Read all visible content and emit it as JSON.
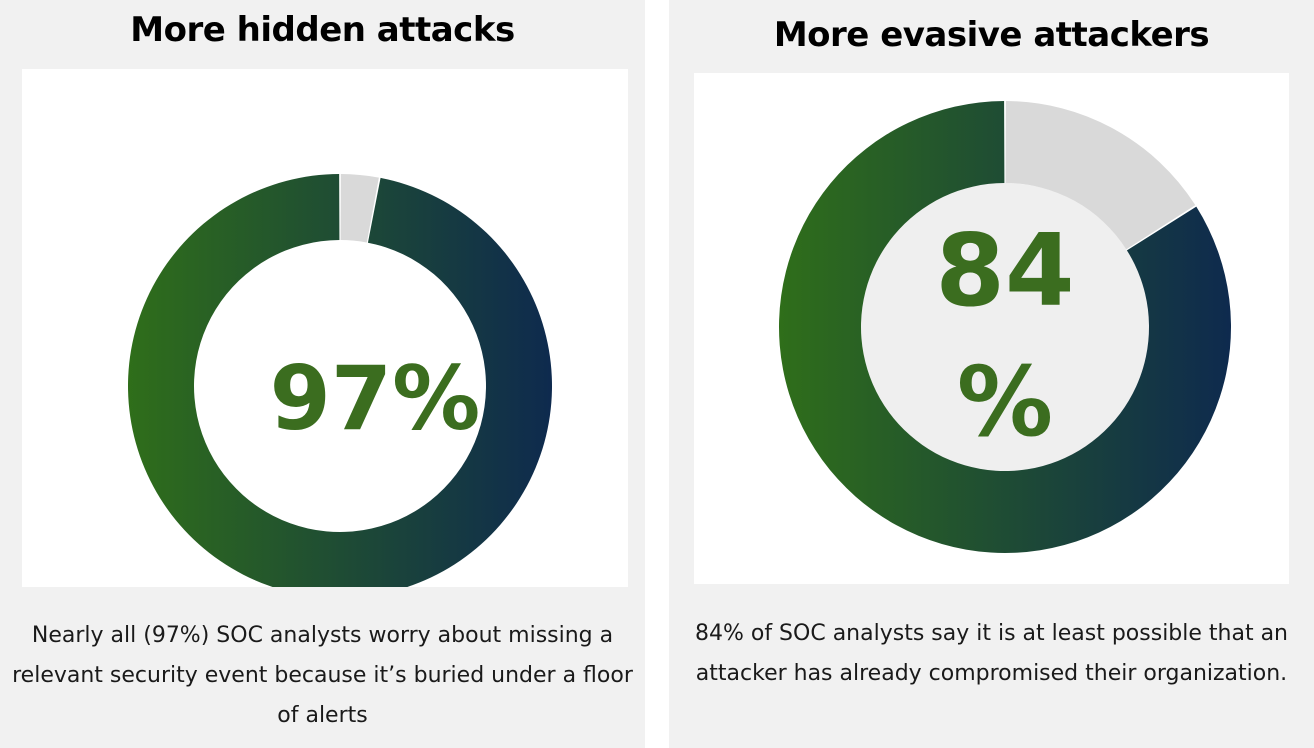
{
  "colors": {
    "ring_start": "#2f6e1a",
    "ring_end": "#0e2a4e",
    "remainder": "#d9d9d9",
    "value_text": "#3b6d1f",
    "inner_fill_right": "#efefef"
  },
  "chart_data": [
    {
      "type": "pie",
      "title": "More hidden attacks",
      "values": [
        97,
        3
      ],
      "center_label": "97%",
      "caption": "Nearly all (97%) SOC analysts worry about missing a relevant security event because it’s buried under a floor of alerts"
    },
    {
      "type": "pie",
      "title": "More evasive attackers",
      "values": [
        84,
        16
      ],
      "center_label_lines": [
        "84",
        "%"
      ],
      "caption": "84% of SOC analysts say it is at least possible that an attacker has already compromised their organization."
    }
  ]
}
